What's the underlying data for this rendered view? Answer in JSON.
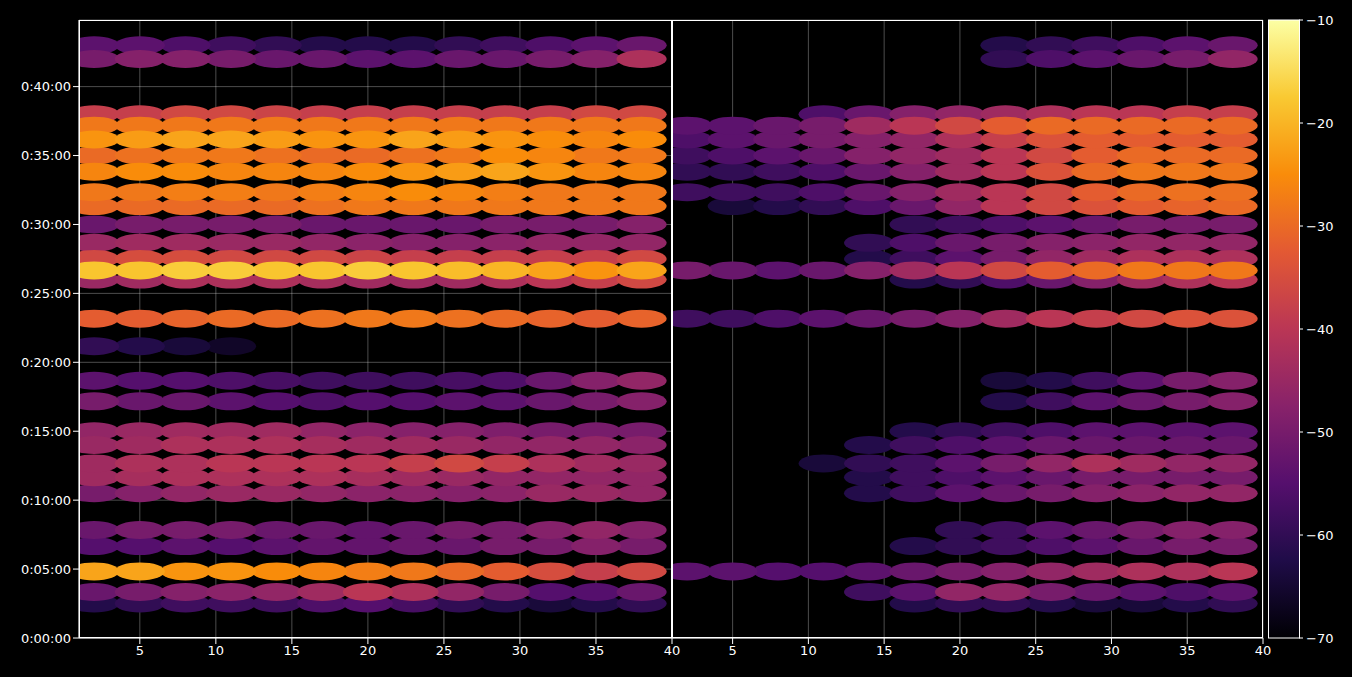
{
  "chart_data": [
    {
      "type": "heatmap",
      "x": [
        2,
        5,
        8,
        11,
        14,
        17,
        20,
        23,
        26,
        29,
        32,
        35,
        38
      ],
      "y": [
        150,
        200,
        290,
        400,
        470,
        630,
        700,
        760,
        840,
        900,
        1030,
        1120,
        1270,
        1390,
        1560,
        1600,
        1650,
        1720,
        1800,
        1880,
        1940,
        2030,
        2100,
        2170,
        2230,
        2280,
        2520,
        2580
      ],
      "values": [
        [
          -62,
          -60,
          -58,
          -58,
          -58,
          -56,
          -55,
          -57,
          -60,
          -62,
          -64,
          -62,
          -60
        ],
        [
          -52,
          -50,
          -48,
          -47,
          -46,
          -44,
          -40,
          -42,
          -46,
          -50,
          -55,
          -55,
          -52
        ],
        [
          -22,
          -22,
          -24,
          -24,
          -25,
          -26,
          -27,
          -28,
          -30,
          -32,
          -35,
          -38,
          -36
        ],
        [
          -55,
          -55,
          -54,
          -55,
          -54,
          -53,
          -53,
          -52,
          -52,
          -50,
          -50,
          -48,
          -50
        ],
        [
          -52,
          -50,
          -50,
          -50,
          -52,
          -52,
          -53,
          -52,
          -50,
          -50,
          -48,
          -46,
          -48
        ],
        [
          -50,
          -48,
          -46,
          -45,
          -45,
          -46,
          -47,
          -47,
          -48,
          -47,
          -45,
          -45,
          -46
        ],
        [
          -44,
          -43,
          -42,
          -42,
          -42,
          -42,
          -43,
          -44,
          -45,
          -46,
          -46,
          -46,
          -46
        ],
        [
          -44,
          -42,
          -42,
          -40,
          -40,
          -40,
          -40,
          -38,
          -36,
          -38,
          -42,
          -44,
          -45
        ],
        [
          -45,
          -44,
          -42,
          -42,
          -42,
          -43,
          -44,
          -44,
          -45,
          -46,
          -46,
          -46,
          -47
        ],
        [
          -46,
          -45,
          -44,
          -44,
          -44,
          -46,
          -47,
          -48,
          -48,
          -49,
          -50,
          -50,
          -50
        ],
        [
          -50,
          -52,
          -52,
          -54,
          -55,
          -56,
          -55,
          -55,
          -54,
          -54,
          -52,
          -50,
          -48
        ],
        [
          -54,
          -55,
          -55,
          -56,
          -57,
          -58,
          -58,
          -58,
          -57,
          -56,
          -52,
          -48,
          -46
        ],
        [
          -60,
          -62,
          -64,
          -66,
          null,
          null,
          null,
          null,
          null,
          null,
          null,
          null,
          null
        ],
        [
          -32,
          -32,
          -31,
          -30,
          -30,
          -29,
          -28,
          -28,
          -29,
          -30,
          -31,
          -32,
          -31
        ],
        [
          -45,
          -44,
          -42,
          -42,
          -42,
          -43,
          -44,
          -44,
          -44,
          -42,
          -40,
          -38,
          -36
        ],
        [
          -18,
          -18,
          -17,
          -17,
          -18,
          -18,
          -17,
          -18,
          -19,
          -20,
          -22,
          -24,
          -22
        ],
        [
          -36,
          -35,
          -35,
          -36,
          -36,
          -36,
          -37,
          -38,
          -38,
          -38,
          -38,
          -38,
          -36
        ],
        [
          -45,
          -44,
          -44,
          -45,
          -45,
          -46,
          -47,
          -48,
          -48,
          -47,
          -46,
          -46,
          -46
        ],
        [
          -52,
          -50,
          -50,
          -50,
          -50,
          -52,
          -52,
          -52,
          -52,
          -50,
          -50,
          -50,
          -48
        ],
        [
          -30,
          -30,
          -30,
          -30,
          -30,
          -29,
          -28,
          -28,
          -28,
          -28,
          -28,
          -28,
          -28
        ],
        [
          -28,
          -28,
          -27,
          -27,
          -28,
          -27,
          -26,
          -25,
          -26,
          -27,
          -28,
          -28,
          -28
        ],
        [
          -26,
          -25,
          -25,
          -26,
          -26,
          -26,
          -25,
          -24,
          -23,
          -22,
          -24,
          -26,
          -26
        ],
        [
          -30,
          -29,
          -28,
          -28,
          -29,
          -30,
          -30,
          -29,
          -28,
          -25,
          -26,
          -28,
          -28
        ],
        [
          -24,
          -23,
          -22,
          -22,
          -23,
          -24,
          -24,
          -22,
          -23,
          -24,
          -25,
          -26,
          -25
        ],
        [
          -28,
          -28,
          -28,
          -28,
          -28,
          -28,
          -28,
          -28,
          -28,
          -28,
          -28,
          -28,
          -28
        ],
        [
          -38,
          -38,
          -36,
          -36,
          -37,
          -38,
          -38,
          -38,
          -38,
          -38,
          -38,
          -36,
          -36
        ],
        [
          -50,
          -48,
          -48,
          -50,
          -52,
          -52,
          -54,
          -54,
          -52,
          -52,
          -50,
          -48,
          -42
        ],
        [
          -54,
          -54,
          -56,
          -58,
          -60,
          -62,
          -62,
          -62,
          -60,
          -58,
          -56,
          -54,
          -52
        ]
      ],
      "xlim": [
        1,
        40
      ],
      "xticks": [
        5,
        10,
        15,
        20,
        25,
        30,
        35,
        40
      ],
      "ylim": [
        0,
        2690
      ],
      "yticks": [
        {
          "value": 0,
          "label": "0:00:00"
        },
        {
          "value": 300,
          "label": "0:05:00"
        },
        {
          "value": 600,
          "label": "0:10:00"
        },
        {
          "value": 900,
          "label": "0:15:00"
        },
        {
          "value": 1200,
          "label": "0:20:00"
        },
        {
          "value": 1500,
          "label": "0:25:00"
        },
        {
          "value": 1800,
          "label": "0:30:00"
        },
        {
          "value": 2100,
          "label": "0:35:00"
        },
        {
          "value": 2400,
          "label": "0:40:00"
        }
      ],
      "grid": true
    },
    {
      "type": "heatmap",
      "x": [
        2,
        5,
        8,
        11,
        14,
        17,
        20,
        23,
        26,
        29,
        32,
        35,
        38
      ],
      "y": [
        150,
        200,
        290,
        400,
        470,
        630,
        700,
        760,
        840,
        900,
        1030,
        1120,
        1270,
        1390,
        1560,
        1600,
        1650,
        1720,
        1800,
        1880,
        1940,
        2030,
        2100,
        2170,
        2230,
        2280,
        2520,
        2580
      ],
      "values": [
        [
          null,
          null,
          null,
          null,
          null,
          -62,
          -60,
          -60,
          -62,
          -64,
          -64,
          -62,
          -60
        ],
        [
          null,
          null,
          null,
          null,
          -58,
          -54,
          -46,
          -46,
          -50,
          -52,
          -54,
          -56,
          -54
        ],
        [
          -54,
          -54,
          -55,
          -55,
          -54,
          -52,
          -50,
          -48,
          -46,
          -44,
          -42,
          -42,
          -40
        ],
        [
          null,
          null,
          null,
          null,
          null,
          -62,
          -60,
          -58,
          -56,
          -54,
          -52,
          -50,
          -50
        ],
        [
          null,
          null,
          null,
          null,
          null,
          null,
          -60,
          -58,
          -54,
          -52,
          -50,
          -48,
          -48
        ],
        [
          null,
          null,
          null,
          null,
          -62,
          -58,
          -54,
          -52,
          -50,
          -48,
          -47,
          -46,
          -46
        ],
        [
          null,
          null,
          null,
          null,
          -62,
          -58,
          -56,
          -54,
          -52,
          -50,
          -50,
          -50,
          -50
        ],
        [
          null,
          null,
          null,
          -64,
          -60,
          -58,
          -54,
          -50,
          -46,
          -42,
          -44,
          -46,
          -46
        ],
        [
          null,
          null,
          null,
          null,
          -62,
          -58,
          -56,
          -54,
          -52,
          -52,
          -52,
          -52,
          -52
        ],
        [
          null,
          null,
          null,
          null,
          null,
          -62,
          -60,
          -58,
          -56,
          -54,
          -54,
          -54,
          -54
        ],
        [
          null,
          null,
          null,
          null,
          null,
          null,
          null,
          -62,
          -58,
          -54,
          -52,
          -50,
          -48
        ],
        [
          null,
          null,
          null,
          null,
          null,
          null,
          null,
          -64,
          -62,
          -58,
          -54,
          -50,
          -48
        ],
        [
          null,
          null,
          null,
          null,
          null,
          null,
          null,
          null,
          null,
          null,
          null,
          null,
          null
        ],
        [
          -58,
          -58,
          -56,
          -54,
          -52,
          -50,
          -48,
          -44,
          -40,
          -38,
          -36,
          -34,
          -34
        ],
        [
          null,
          null,
          null,
          null,
          null,
          -62,
          -60,
          -56,
          -52,
          -48,
          -44,
          -42,
          -40
        ],
        [
          -50,
          -52,
          -54,
          -52,
          -48,
          -44,
          -40,
          -36,
          -32,
          -30,
          -28,
          -28,
          -28
        ],
        [
          null,
          null,
          null,
          null,
          -62,
          -58,
          -54,
          -50,
          -46,
          -44,
          -42,
          -42,
          -42
        ],
        [
          null,
          null,
          null,
          null,
          -60,
          -56,
          -52,
          -50,
          -48,
          -47,
          -46,
          -46,
          -46
        ],
        [
          null,
          null,
          null,
          null,
          null,
          -60,
          -58,
          -56,
          -54,
          -52,
          -50,
          -50,
          -50
        ],
        [
          null,
          -64,
          -62,
          -60,
          -56,
          -52,
          -46,
          -40,
          -36,
          -34,
          -32,
          -31,
          -30
        ],
        [
          -58,
          -58,
          -58,
          -56,
          -52,
          -48,
          -44,
          -40,
          -36,
          -32,
          -30,
          -29,
          -29
        ],
        [
          -60,
          -60,
          -58,
          -56,
          -52,
          -48,
          -44,
          -40,
          -34,
          -30,
          -28,
          -28,
          -28
        ],
        [
          -58,
          -56,
          -54,
          -52,
          -48,
          -46,
          -44,
          -40,
          -36,
          -32,
          -30,
          -30,
          -30
        ],
        [
          -56,
          -54,
          -52,
          -50,
          -48,
          -46,
          -42,
          -38,
          -34,
          -32,
          -32,
          -32,
          -32
        ],
        [
          -54,
          -54,
          -52,
          -50,
          -44,
          -40,
          -36,
          -32,
          -30,
          -30,
          -30,
          -30,
          -30
        ],
        [
          null,
          null,
          null,
          -56,
          -52,
          -48,
          -46,
          -44,
          -42,
          -40,
          -40,
          -38,
          -38
        ],
        [
          null,
          null,
          null,
          null,
          null,
          null,
          null,
          -60,
          -56,
          -54,
          -52,
          -50,
          -46
        ],
        [
          null,
          null,
          null,
          null,
          null,
          null,
          null,
          -62,
          -60,
          -58,
          -56,
          -54,
          -52
        ]
      ],
      "xlim": [
        1,
        40
      ],
      "xticks": [
        5,
        10,
        15,
        20,
        25,
        30,
        35,
        40
      ],
      "ylim": [
        0,
        2690
      ],
      "yticks": [
        0,
        300,
        600,
        900,
        1200,
        1500,
        1800,
        2100,
        2400
      ],
      "grid": true,
      "tick_labels": "x"
    }
  ],
  "colorbar": {
    "range": [
      -70,
      -10
    ],
    "ticks": [
      {
        "value": -70,
        "label": "−70"
      },
      {
        "value": -60,
        "label": "−60"
      },
      {
        "value": -50,
        "label": "−50"
      },
      {
        "value": -40,
        "label": "−40"
      },
      {
        "value": -30,
        "label": "−30"
      },
      {
        "value": -20,
        "label": "−20"
      },
      {
        "value": -10,
        "label": "−10"
      }
    ]
  }
}
